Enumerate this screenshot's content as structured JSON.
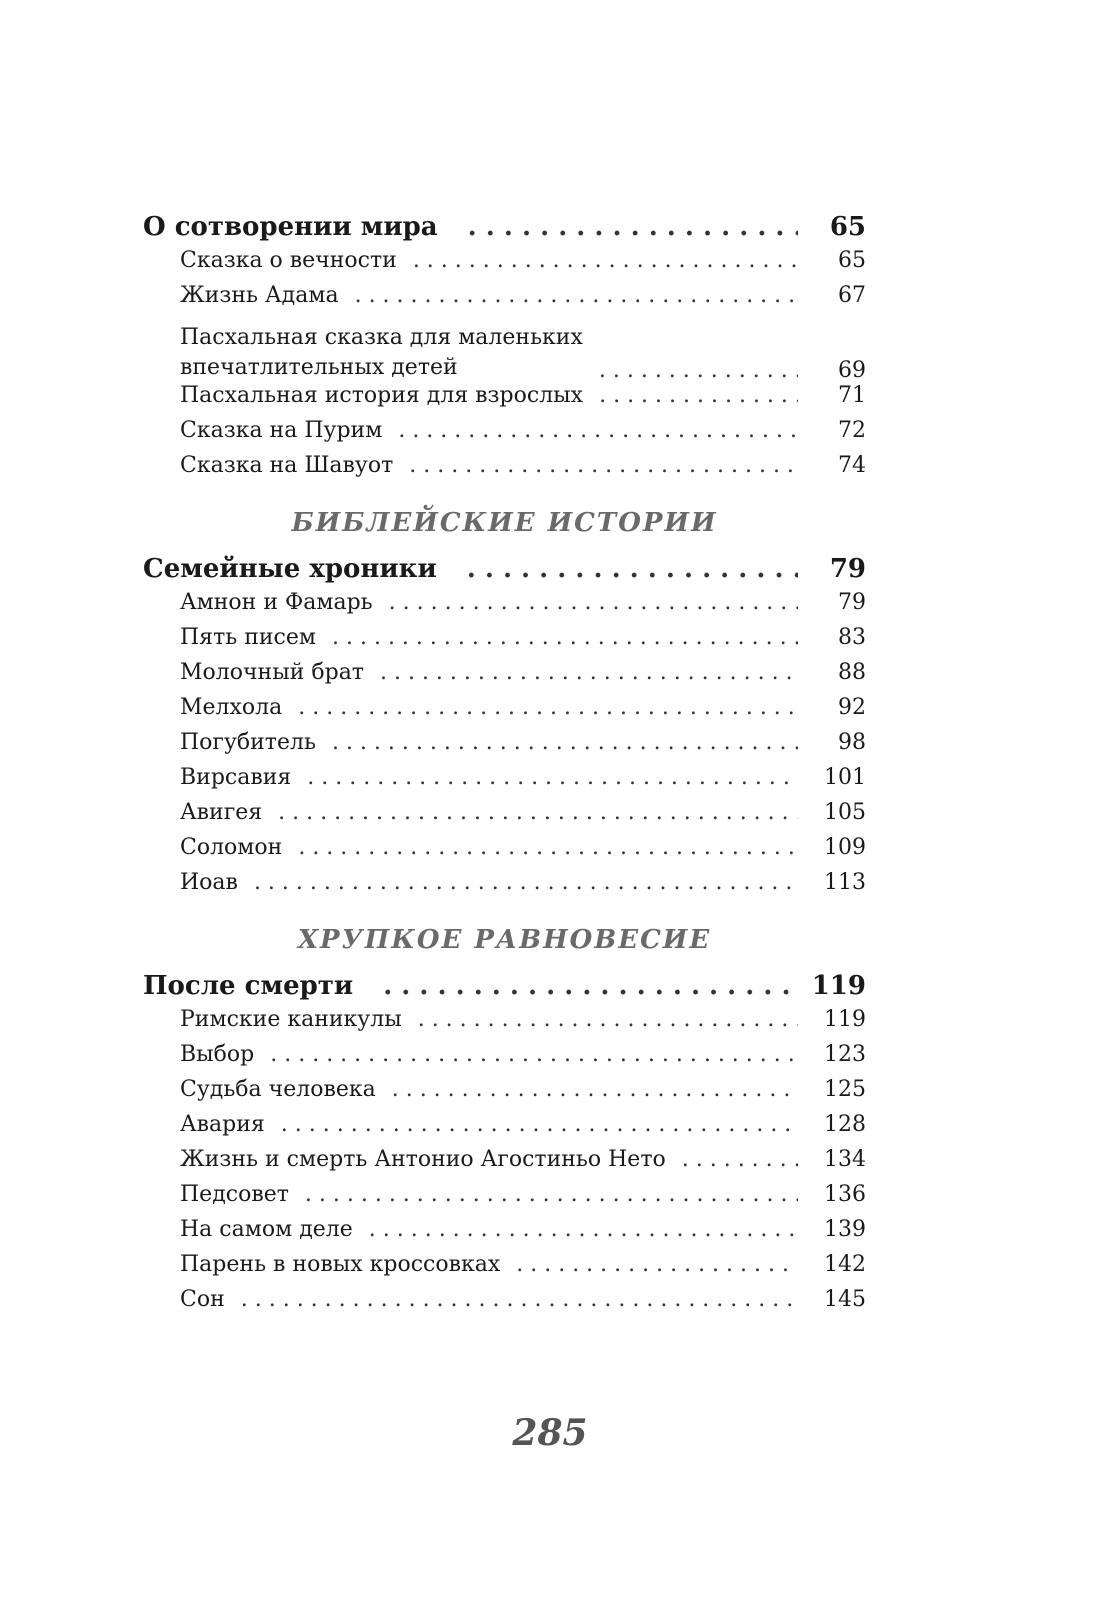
{
  "sections": [
    {
      "heading": "",
      "chapter": {
        "title": "О сотворении мира",
        "page": "65"
      },
      "items": [
        {
          "title": "Сказка о вечности",
          "page": "65"
        },
        {
          "title": "Жизнь Адама",
          "page": "67"
        },
        {
          "title": "Пасхальная сказка для маленьких",
          "title2": "впечатлительных детей",
          "page": "69"
        },
        {
          "title": "Пасхальная история для взрослых",
          "page": "71"
        },
        {
          "title": "Сказка на Пурим",
          "page": "72"
        },
        {
          "title": "Сказка на Шавуот",
          "page": "74"
        }
      ]
    },
    {
      "heading": "Библейские истории",
      "chapter": {
        "title": "Семейные хроники",
        "page": "79"
      },
      "items": [
        {
          "title": "Амнон и Фамарь",
          "page": "79"
        },
        {
          "title": "Пять писем",
          "page": "83"
        },
        {
          "title": "Молочный брат",
          "page": "88"
        },
        {
          "title": "Мелхола",
          "page": "92"
        },
        {
          "title": "Погубитель",
          "page": "98"
        },
        {
          "title": "Вирсавия",
          "page": "101"
        },
        {
          "title": "Авигея",
          "page": "105"
        },
        {
          "title": "Соломон",
          "page": "109"
        },
        {
          "title": "Иоав",
          "page": "113"
        }
      ]
    },
    {
      "heading": "Хрупкое равновесие",
      "chapter": {
        "title": "После смерти",
        "page": "119"
      },
      "items": [
        {
          "title": "Римские каникулы",
          "page": "119"
        },
        {
          "title": "Выбор",
          "page": "123"
        },
        {
          "title": "Судьба человека",
          "page": "125"
        },
        {
          "title": "Авария",
          "page": "128"
        },
        {
          "title": "Жизнь и смерть Антонио Агостиньо Нето",
          "page": "134"
        },
        {
          "title": "Педсовет",
          "page": "136"
        },
        {
          "title": "На самом деле",
          "page": "139"
        },
        {
          "title": "Парень в новых кроссовках",
          "page": "142"
        },
        {
          "title": "Сон",
          "page": "145"
        }
      ]
    }
  ],
  "page_number": "285"
}
